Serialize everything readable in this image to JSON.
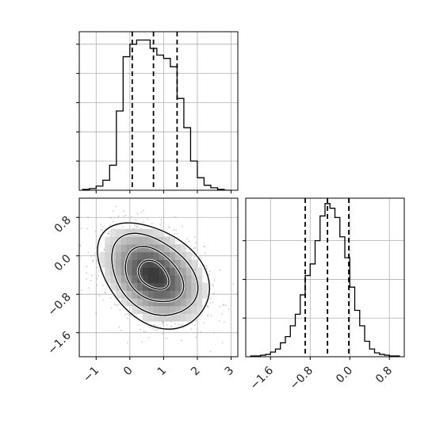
{
  "chart_data": {
    "type": "corner",
    "panels": [
      {
        "id": "hist-x",
        "type": "histogram",
        "xlim": [
          -1.5,
          3.2
        ],
        "bin_edges": [
          -1.4,
          -1.2,
          -1.0,
          -0.8,
          -0.6,
          -0.4,
          -0.2,
          0.0,
          0.2,
          0.4,
          0.6,
          0.8,
          1.0,
          1.2,
          1.4,
          1.6,
          1.8,
          2.0,
          2.2,
          2.4,
          2.6,
          2.8,
          3.0
        ],
        "counts": [
          1,
          2,
          5,
          12,
          30,
          95,
          160,
          175,
          180,
          180,
          170,
          162,
          158,
          148,
          110,
          75,
          35,
          15,
          6,
          3,
          1,
          0
        ],
        "ylim": [
          0,
          190
        ],
        "quantiles": [
          0.07,
          0.7,
          1.4
        ],
        "xticks_label_visible": false,
        "grid": true
      },
      {
        "id": "joint-xy",
        "type": "2d-density",
        "xlim": [
          -1.5,
          3.2
        ],
        "ylim": [
          -2.1,
          1.2
        ],
        "xticks": [
          -1,
          0,
          1,
          2,
          3
        ],
        "xtick_labels": [
          "−1",
          "0",
          "1",
          "2",
          "3"
        ],
        "yticks": [
          -1.6,
          -0.8,
          0.0,
          0.8
        ],
        "ytick_labels": [
          "−1.6",
          "−0.8",
          "0.0",
          "0.8"
        ],
        "center": [
          0.7,
          -0.4
        ],
        "spread": [
          0.75,
          0.5
        ],
        "correlation": -0.35,
        "contour_levels": 4,
        "grid": true
      },
      {
        "id": "hist-y",
        "type": "histogram",
        "xlim": [
          -2.1,
          1.1
        ],
        "bin_edges": [
          -2.0,
          -1.9,
          -1.8,
          -1.7,
          -1.6,
          -1.5,
          -1.4,
          -1.3,
          -1.2,
          -1.1,
          -1.0,
          -0.9,
          -0.8,
          -0.7,
          -0.6,
          -0.5,
          -0.4,
          -0.3,
          -0.2,
          -0.1,
          0.0,
          0.1,
          0.2,
          0.3,
          0.4,
          0.5,
          0.6,
          0.7,
          0.8,
          0.9,
          1.0
        ],
        "counts": [
          1,
          1,
          2,
          3,
          6,
          10,
          18,
          26,
          40,
          55,
          80,
          105,
          120,
          150,
          182,
          198,
          192,
          180,
          155,
          128,
          90,
          60,
          40,
          20,
          10,
          5,
          3,
          2,
          1,
          1
        ],
        "ylim": [
          0,
          205
        ],
        "quantiles": [
          -0.9,
          -0.45,
          -0.02
        ],
        "xticks": [
          -1.6,
          -0.8,
          0.0,
          0.8
        ],
        "xtick_labels": [
          "−1.6",
          "−0.8",
          "0.0",
          "0.8"
        ],
        "grid": true
      }
    ]
  },
  "colors": {
    "axes": "#000000",
    "grid": "#b0b0b0",
    "line": "#000000",
    "points": "#8c8c8c",
    "density": "#000000"
  }
}
